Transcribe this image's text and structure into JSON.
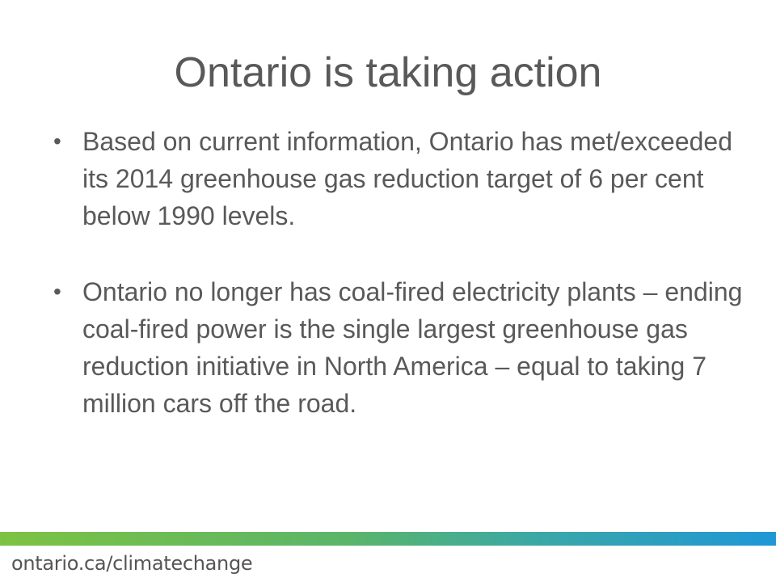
{
  "slide": {
    "title": "Ontario is taking action",
    "bullets": [
      {
        "marker": "•",
        "text": "Based on current information, Ontario has met/exceeded its 2014 greenhouse gas reduction target of 6 per cent below 1990 levels."
      },
      {
        "marker": "•",
        "text": "Ontario no longer has coal-fired electricity plants – ending coal-fired power is the single largest greenhouse gas reduction initiative in North America – equal to taking 7 million cars off the road."
      }
    ]
  },
  "footer": {
    "url": "ontario.ca/climatechange",
    "bar_colors": [
      "#7dc242",
      "#5ab56a",
      "#3aa7a8",
      "#1f97d6"
    ]
  }
}
